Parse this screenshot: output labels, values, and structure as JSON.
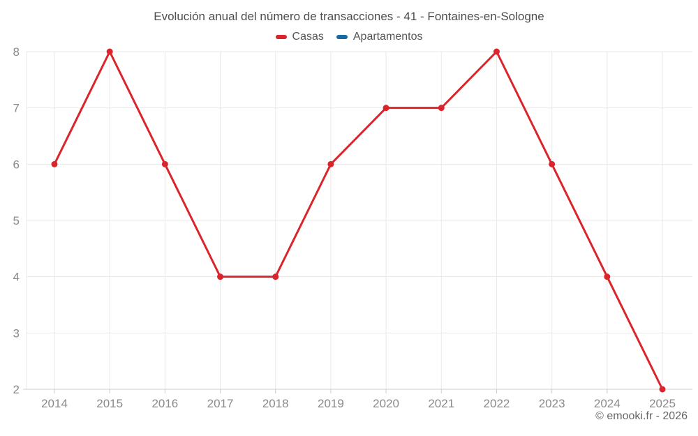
{
  "footer": {
    "copyright": "© emooki.fr - 2026"
  },
  "chart_data": {
    "type": "line",
    "title": "Evolución anual del número de transacciones - 41 - Fontaines-en-Sologne",
    "categories": [
      "2014",
      "2015",
      "2016",
      "2017",
      "2018",
      "2019",
      "2020",
      "2021",
      "2022",
      "2023",
      "2024",
      "2025"
    ],
    "series": [
      {
        "name": "Casas",
        "color": "#d9252b",
        "values": [
          6,
          8,
          6,
          4,
          4,
          6,
          7,
          7,
          8,
          6,
          4,
          2
        ]
      },
      {
        "name": "Apartamentos",
        "color": "#176ba0",
        "values": []
      }
    ],
    "xlabel": "",
    "ylabel": "",
    "ylim": [
      2,
      8
    ],
    "yticks": [
      2,
      3,
      4,
      5,
      6,
      7,
      8
    ],
    "grid": true,
    "legend_position": "top",
    "marker": "circle",
    "colors": {
      "grid": "#e9e9e9",
      "axis_line": "#cccccc",
      "tick_label": "#8a8a8a"
    }
  }
}
